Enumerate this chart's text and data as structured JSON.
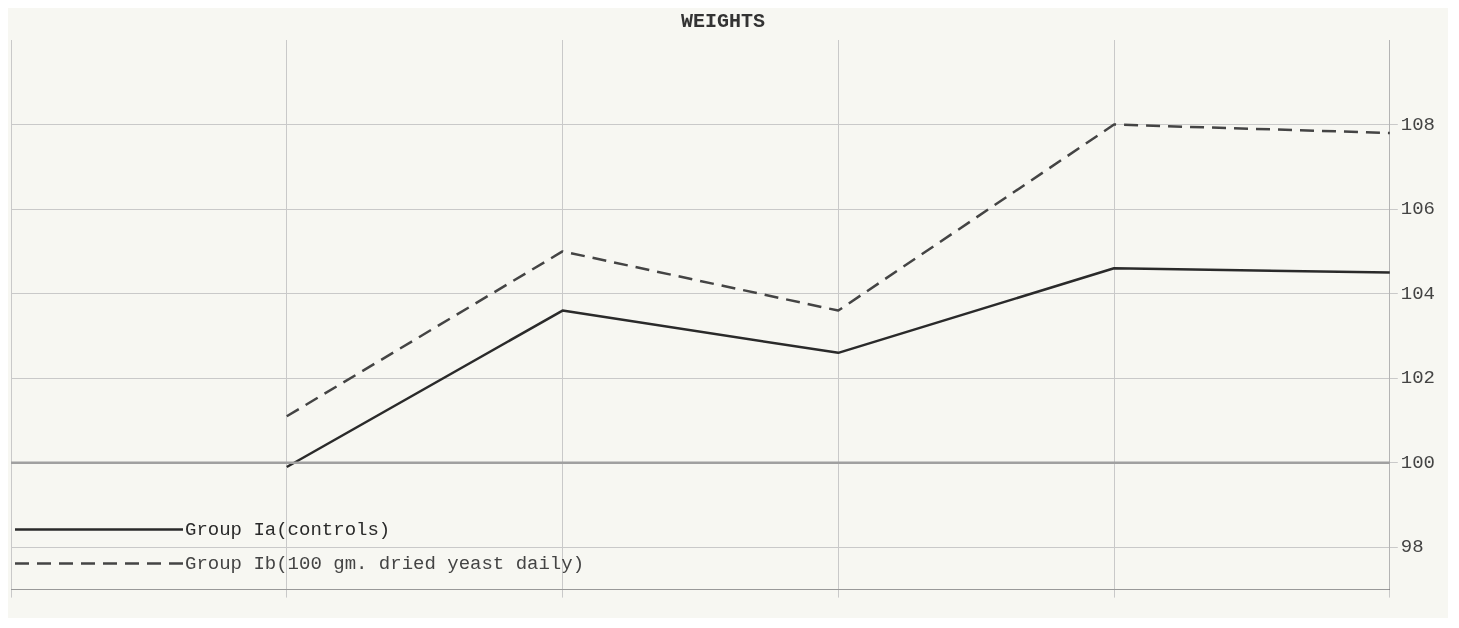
{
  "chart_data": {
    "type": "line",
    "title": "WEIGHTS",
    "categories": [
      null,
      null,
      null,
      null,
      null,
      null
    ],
    "series": [
      {
        "name": "Group Ia(controls)",
        "color": "#2a2a2a",
        "line_style": "solid",
        "values": [
          null,
          99.9,
          103.6,
          102.6,
          104.6,
          104.5
        ]
      },
      {
        "name": "Group Ib(100 gm. dried yeast daily)",
        "color": "#444444",
        "line_style": "dashed",
        "values": [
          null,
          101.1,
          105.0,
          103.6,
          108.0,
          107.8
        ]
      }
    ],
    "ylim": [
      97,
      110
    ],
    "yticks": [
      98,
      100,
      102,
      104,
      106,
      108
    ],
    "ref_lines": [
      {
        "axis": "y",
        "value": 100,
        "color": "#a0a0a0"
      }
    ],
    "grid": true,
    "legend": "bottom left",
    "marker": "none"
  }
}
